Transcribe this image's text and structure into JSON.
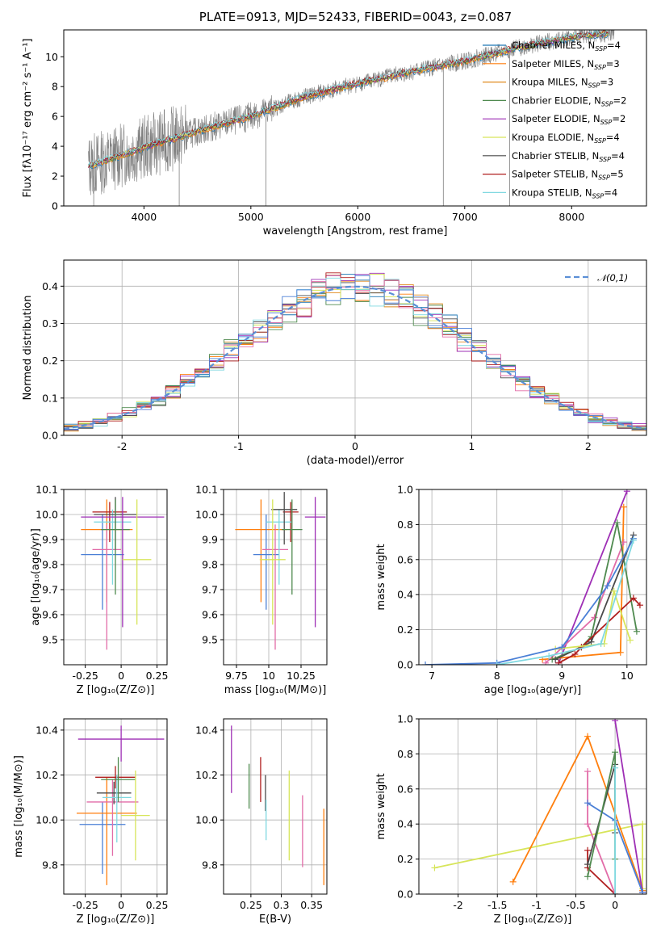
{
  "page_title": "PLATE=0913, MJD=52433, FIBERID=0043, z=0.087",
  "colors": {
    "spectrum_data": "#7f7f7f",
    "normal_curve": "#5b8fd6",
    "grid": "#b0b0b0",
    "models": [
      "#1f77b4",
      "#ff7f0e",
      "#e08a1e",
      "#4f8a4f",
      "#9e2fb5",
      "#d7e55a",
      "#4a4a4a",
      "#b01e1e",
      "#7fd8e0",
      "#e26ca8",
      "#4a7fd6"
    ]
  },
  "chart_data": [
    {
      "type": "line",
      "id": "spectrum",
      "xlabel": "wavelength [Angstrom, rest frame]",
      "ylabel": "Flux [fλ10⁻¹⁷ erg cm⁻² s⁻¹ A⁻¹]",
      "xlim": [
        3250,
        8700
      ],
      "ylim": [
        0,
        11.8
      ],
      "xticks": [
        4000,
        5000,
        6000,
        7000,
        8000
      ],
      "yticks": [
        0,
        2,
        4,
        6,
        8,
        10
      ],
      "data_trend": {
        "x": [
          3500,
          4000,
          4500,
          5000,
          5500,
          6000,
          6500,
          7000,
          7500,
          8000,
          8400
        ],
        "y": [
          2.7,
          3.9,
          5.0,
          6.0,
          7.3,
          8.2,
          9.0,
          9.7,
          10.6,
          11.3,
          11.6
        ]
      },
      "legend_position": "right",
      "legend": [
        {
          "label": "Chabrier MILES, N_SSP=4",
          "color": "#1f77b4"
        },
        {
          "label": "Salpeter MILES, N_SSP=3",
          "color": "#ff7f0e"
        },
        {
          "label": "Kroupa MILES, N_SSP=3",
          "color": "#e08a1e"
        },
        {
          "label": "Chabrier ELODIE, N_SSP=2",
          "color": "#4f8a4f"
        },
        {
          "label": "Salpeter ELODIE, N_SSP=2",
          "color": "#9e2fb5"
        },
        {
          "label": "Kroupa ELODIE, N_SSP=4",
          "color": "#d7e55a"
        },
        {
          "label": "Chabrier STELIB, N_SSP=4",
          "color": "#4a4a4a"
        },
        {
          "label": "Salpeter STELIB, N_SSP=5",
          "color": "#b01e1e"
        },
        {
          "label": "Kroupa STELIB, N_SSP=4",
          "color": "#7fd8e0"
        }
      ]
    },
    {
      "type": "line",
      "id": "residual_hist",
      "xlabel": "(data-model)/error",
      "ylabel": "Normed distribution",
      "xlim": [
        -2.5,
        2.5
      ],
      "ylim": [
        0,
        0.47
      ],
      "xticks": [
        -2,
        -1,
        0,
        1,
        2
      ],
      "yticks": [
        0.0,
        0.1,
        0.2,
        0.3,
        0.4
      ],
      "bins": 40,
      "series": [
        {
          "name": "𝒩(0,1)",
          "mean": 0,
          "sigma": 1,
          "style": "dashed"
        }
      ],
      "legend_position": "top-right"
    },
    {
      "type": "scatter",
      "id": "age_vs_Z",
      "xlabel": "Z [log₁₀(Z/Z⊙)]",
      "ylabel": "age  [log₁₀(age/yr)]",
      "xlim": [
        -0.4,
        0.32
      ],
      "ylim": [
        9.4,
        10.1
      ],
      "xticks": [
        -0.25,
        0.0,
        0.25
      ],
      "yticks": [
        9.5,
        9.6,
        9.7,
        9.8,
        9.9,
        10.0,
        10.1
      ],
      "points": [
        {
          "x": -0.1,
          "y": 9.94,
          "xerr": 0.18,
          "yerr": [
            0.29,
            0.12
          ],
          "color": "#ff7f0e"
        },
        {
          "x": -0.13,
          "y": 9.84,
          "xerr": 0.15,
          "yerr": [
            0.22,
            0.16
          ],
          "color": "#4a7fd6"
        },
        {
          "x": -0.1,
          "y": 9.86,
          "xerr": 0.1,
          "yerr": [
            0.4,
            0.1
          ],
          "color": "#e26ca8"
        },
        {
          "x": -0.08,
          "y": 10.01,
          "xerr": 0.12,
          "yerr": [
            0.12,
            0.04
          ],
          "color": "#b01e1e"
        },
        {
          "x": -0.06,
          "y": 9.97,
          "xerr": 0.13,
          "yerr": [
            0.25,
            0.05
          ],
          "color": "#7fd8e0"
        },
        {
          "x": -0.04,
          "y": 10.0,
          "xerr": 0.15,
          "yerr": [
            0.14,
            0.07
          ],
          "color": "#4a4a4a"
        },
        {
          "x": -0.04,
          "y": 9.94,
          "xerr": 0.1,
          "yerr": [
            0.26,
            0.12
          ],
          "color": "#4f8a4f"
        },
        {
          "x": 0.01,
          "y": 9.99,
          "xerr": 0.29,
          "yerr": [
            0.44,
            0.08
          ],
          "color": "#9e2fb5"
        },
        {
          "x": 0.11,
          "y": 9.82,
          "xerr": 0.1,
          "yerr": [
            0.26,
            0.24
          ],
          "color": "#d7e55a"
        }
      ]
    },
    {
      "type": "scatter",
      "id": "age_vs_mass",
      "xlabel": "mass [log₁₀(M/M⊙)]",
      "xlim": [
        9.65,
        10.45
      ],
      "ylim": [
        9.4,
        10.1
      ],
      "xticks": [
        9.75,
        10.0,
        10.25
      ],
      "yticks": [
        9.5,
        9.6,
        9.7,
        9.8,
        9.9,
        10.0,
        10.1
      ],
      "points": [
        {
          "x": 9.94,
          "y": 9.94,
          "xerr": 0.2,
          "yerr": [
            0.29,
            0.12
          ],
          "color": "#ff7f0e"
        },
        {
          "x": 9.98,
          "y": 9.84,
          "xerr": 0.1,
          "yerr": [
            0.22,
            0.16
          ],
          "color": "#4a7fd6"
        },
        {
          "x": 10.05,
          "y": 9.86,
          "xerr": 0.1,
          "yerr": [
            0.4,
            0.1
          ],
          "color": "#e26ca8"
        },
        {
          "x": 10.17,
          "y": 10.01,
          "xerr": 0.06,
          "yerr": [
            0.12,
            0.04
          ],
          "color": "#b01e1e"
        },
        {
          "x": 10.08,
          "y": 9.97,
          "xerr": 0.1,
          "yerr": [
            0.25,
            0.05
          ],
          "color": "#7fd8e0"
        },
        {
          "x": 10.12,
          "y": 10.02,
          "xerr": 0.1,
          "yerr": [
            0.14,
            0.07
          ],
          "color": "#4a4a4a"
        },
        {
          "x": 10.18,
          "y": 9.94,
          "xerr": 0.08,
          "yerr": [
            0.26,
            0.12
          ],
          "color": "#4f8a4f"
        },
        {
          "x": 10.36,
          "y": 9.99,
          "xerr": 0.08,
          "yerr": [
            0.44,
            0.08
          ],
          "color": "#9e2fb5"
        },
        {
          "x": 10.03,
          "y": 9.82,
          "xerr": 0.1,
          "yerr": [
            0.26,
            0.24
          ],
          "color": "#d7e55a"
        }
      ]
    },
    {
      "type": "line",
      "id": "weight_vs_age",
      "xlabel": "age  [log₁₀(age/yr)]",
      "ylabel": "mass weight",
      "xlim": [
        6.8,
        10.3
      ],
      "ylim": [
        0,
        1.0
      ],
      "xticks": [
        7,
        8,
        9,
        10
      ],
      "yticks": [
        0.0,
        0.2,
        0.4,
        0.6,
        0.8,
        1.0
      ],
      "series": [
        {
          "color": "#9e2fb5",
          "x": [
            8.95,
            10.0
          ],
          "y": [
            0.01,
            0.99
          ]
        },
        {
          "color": "#ff7f0e",
          "x": [
            8.7,
            9.9,
            9.95
          ],
          "y": [
            0.03,
            0.07,
            0.9
          ]
        },
        {
          "color": "#e26ca8",
          "x": [
            8.75,
            9.5,
            9.95
          ],
          "y": [
            0.01,
            0.27,
            0.7
          ]
        },
        {
          "color": "#4f8a4f",
          "x": [
            8.85,
            9.3,
            9.45,
            9.85,
            10.15
          ],
          "y": [
            0.03,
            0.1,
            0.16,
            0.81,
            0.19
          ]
        },
        {
          "color": "#4a4a4a",
          "x": [
            8.9,
            9.45,
            10.1
          ],
          "y": [
            0.03,
            0.13,
            0.74
          ]
        },
        {
          "color": "#b01e1e",
          "x": [
            8.95,
            9.2,
            9.3,
            10.1,
            10.2
          ],
          "y": [
            0.01,
            0.06,
            0.1,
            0.38,
            0.34
          ]
        },
        {
          "color": "#d7e55a",
          "x": [
            8.9,
            9.65,
            9.8,
            10.05
          ],
          "y": [
            0.09,
            0.12,
            0.42,
            0.14
          ]
        },
        {
          "color": "#4a7fd6",
          "x": [
            6.9,
            8.0,
            9.0,
            9.7,
            10.1
          ],
          "y": [
            0.0,
            0.01,
            0.1,
            0.45,
            0.72
          ]
        },
        {
          "color": "#7fd8e0",
          "x": [
            8.0,
            8.8,
            9.6,
            10.1
          ],
          "y": [
            0.0,
            0.05,
            0.12,
            0.71
          ]
        }
      ]
    },
    {
      "type": "scatter",
      "id": "mass_vs_Z",
      "xlabel": "Z [log₁₀(Z/Z⊙)]",
      "ylabel": "mass [log₁₀(M/M⊙)]",
      "xlim": [
        -0.4,
        0.32
      ],
      "ylim": [
        9.67,
        10.45
      ],
      "xticks": [
        -0.25,
        0.0,
        0.25
      ],
      "yticks": [
        9.8,
        10.0,
        10.2,
        10.4
      ],
      "points": [
        {
          "x": -0.13,
          "y": 9.98,
          "xerr": 0.16,
          "yerr": [
            0.22,
            0.1
          ],
          "color": "#4a7fd6"
        },
        {
          "x": -0.1,
          "y": 10.03,
          "xerr": 0.21,
          "yerr": [
            0.32,
            0.16
          ],
          "color": "#ff7f0e"
        },
        {
          "x": -0.06,
          "y": 10.08,
          "xerr": 0.18,
          "yerr": [
            0.24,
            0.1
          ],
          "color": "#e26ca8"
        },
        {
          "x": -0.05,
          "y": 10.12,
          "xerr": 0.12,
          "yerr": [
            0.05,
            0.05
          ],
          "color": "#4a4a4a"
        },
        {
          "x": -0.04,
          "y": 10.19,
          "xerr": 0.14,
          "yerr": [
            0.05,
            0.05
          ],
          "color": "#b01e1e"
        },
        {
          "x": -0.03,
          "y": 10.1,
          "xerr": 0.1,
          "yerr": [
            0.2,
            0.1
          ],
          "color": "#7fd8e0"
        },
        {
          "x": -0.02,
          "y": 10.18,
          "xerr": 0.12,
          "yerr": [
            0.1,
            0.1
          ],
          "color": "#4f8a4f"
        },
        {
          "x": 0.0,
          "y": 10.36,
          "xerr": 0.3,
          "yerr": [
            0.1,
            0.06
          ],
          "color": "#9e2fb5"
        },
        {
          "x": 0.1,
          "y": 10.02,
          "xerr": 0.1,
          "yerr": [
            0.2,
            0.2
          ],
          "color": "#d7e55a"
        }
      ]
    },
    {
      "type": "scatter",
      "id": "mass_vs_ebv",
      "xlabel": "E(B-V)",
      "xlim": [
        0.205,
        0.375
      ],
      "ylim": [
        9.67,
        10.45
      ],
      "xticks": [
        0.25,
        0.3,
        0.35
      ],
      "yticks": [
        9.8,
        10.0,
        10.2,
        10.4
      ],
      "points": [
        {
          "x": 0.218,
          "y": 10.27,
          "yerr": [
            0.15,
            0.15
          ],
          "color": "#9e2fb5"
        },
        {
          "x": 0.247,
          "y": 10.15,
          "yerr": [
            0.1,
            0.1
          ],
          "color": "#4f8a4f"
        },
        {
          "x": 0.266,
          "y": 10.18,
          "yerr": [
            0.1,
            0.1
          ],
          "color": "#b01e1e"
        },
        {
          "x": 0.274,
          "y": 10.12,
          "yerr": [
            0.08,
            0.08
          ],
          "color": "#4a4a4a"
        },
        {
          "x": 0.275,
          "y": 10.0,
          "yerr": [
            0.09,
            0.09
          ],
          "color": "#7fd8e0"
        },
        {
          "x": 0.313,
          "y": 10.02,
          "yerr": [
            0.2,
            0.2
          ],
          "color": "#d7e55a"
        },
        {
          "x": 0.335,
          "y": 9.95,
          "yerr": [
            0.16,
            0.16
          ],
          "color": "#e26ca8"
        },
        {
          "x": 0.37,
          "y": 9.88,
          "yerr": [
            0.17,
            0.17
          ],
          "color": "#ff7f0e"
        }
      ]
    },
    {
      "type": "line",
      "id": "weight_vs_Z",
      "xlabel": "Z [log₁₀(Z/Z⊙)]",
      "ylabel": "mass weight",
      "xlim": [
        -2.5,
        0.4
      ],
      "ylim": [
        0,
        1.0
      ],
      "xticks": [
        -2.0,
        -1.5,
        -1.0,
        -0.5,
        0.0
      ],
      "yticks": [
        0.0,
        0.2,
        0.4,
        0.6,
        0.8,
        1.0
      ],
      "series": [
        {
          "color": "#d7e55a",
          "x": [
            -2.3,
            0.35,
            0.35
          ],
          "y": [
            0.15,
            0.4,
            0.03
          ]
        },
        {
          "color": "#ff7f0e",
          "x": [
            -1.3,
            -0.35,
            0.35
          ],
          "y": [
            0.07,
            0.9,
            0.02
          ]
        },
        {
          "color": "#9e2fb5",
          "x": [
            0.0,
            0.35
          ],
          "y": [
            0.99,
            0.01
          ]
        },
        {
          "color": "#b01e1e",
          "x": [
            -0.35,
            -0.35,
            0.0
          ],
          "y": [
            0.25,
            0.15,
            0.0
          ]
        },
        {
          "color": "#e26ca8",
          "x": [
            -0.35,
            -0.35,
            0.0
          ],
          "y": [
            0.7,
            0.4,
            0.0
          ]
        },
        {
          "color": "#4a7fd6",
          "x": [
            -0.35,
            0.0,
            0.35
          ],
          "y": [
            0.52,
            0.42,
            0.01
          ]
        },
        {
          "color": "#4a4a4a",
          "x": [
            -0.35,
            0.0,
            0.0
          ],
          "y": [
            0.17,
            0.74,
            0.35
          ]
        },
        {
          "color": "#4f8a4f",
          "x": [
            -0.35,
            0.0,
            0.0
          ],
          "y": [
            0.1,
            0.81,
            0.2
          ]
        },
        {
          "color": "#7fd8e0",
          "x": [
            0.0,
            0.0
          ],
          "y": [
            0.72,
            0.0
          ]
        }
      ]
    }
  ]
}
